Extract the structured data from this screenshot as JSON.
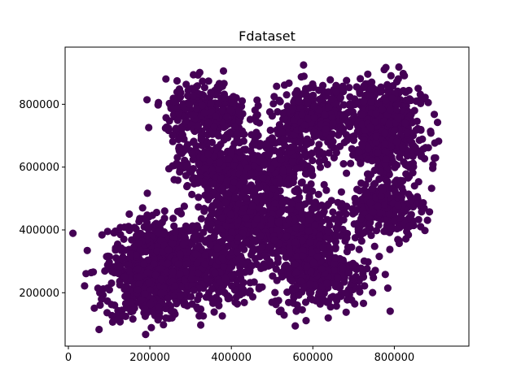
{
  "chart_data": {
    "type": "scatter",
    "title": "Fdataset",
    "xlabel": "",
    "ylabel": "",
    "xlim": [
      -8000,
      983000
    ],
    "ylim": [
      30000,
      982000
    ],
    "x_ticks": [
      0,
      200000,
      400000,
      600000,
      800000
    ],
    "y_ticks": [
      200000,
      400000,
      600000,
      800000
    ],
    "x_tick_labels": [
      "0",
      "200000",
      "400000",
      "600000",
      "800000"
    ],
    "y_tick_labels": [
      "200000",
      "400000",
      "600000",
      "800000"
    ],
    "grid": false,
    "legend": "none",
    "marker_color": "#440154",
    "clusters": [
      {
        "cx": 220000,
        "cy": 320000,
        "sx": 60000,
        "sy": 60000,
        "n": 420
      },
      {
        "cx": 200000,
        "cy": 210000,
        "sx": 55000,
        "sy": 50000,
        "n": 320
      },
      {
        "cx": 350000,
        "cy": 270000,
        "sx": 55000,
        "sy": 55000,
        "n": 300
      },
      {
        "cx": 430000,
        "cy": 410000,
        "sx": 55000,
        "sy": 50000,
        "n": 300
      },
      {
        "cx": 560000,
        "cy": 400000,
        "sx": 55000,
        "sy": 60000,
        "n": 380
      },
      {
        "cx": 620000,
        "cy": 260000,
        "sx": 60000,
        "sy": 55000,
        "n": 330
      },
      {
        "cx": 360000,
        "cy": 600000,
        "sx": 50000,
        "sy": 45000,
        "n": 280
      },
      {
        "cx": 520000,
        "cy": 620000,
        "sx": 45000,
        "sy": 45000,
        "n": 220
      },
      {
        "cx": 340000,
        "cy": 770000,
        "sx": 50000,
        "sy": 50000,
        "n": 300
      },
      {
        "cx": 600000,
        "cy": 760000,
        "sx": 55000,
        "sy": 50000,
        "n": 300
      },
      {
        "cx": 770000,
        "cy": 780000,
        "sx": 50000,
        "sy": 50000,
        "n": 300
      },
      {
        "cx": 780000,
        "cy": 660000,
        "sx": 50000,
        "sy": 45000,
        "n": 260
      },
      {
        "cx": 780000,
        "cy": 470000,
        "sx": 45000,
        "sy": 45000,
        "n": 260
      },
      {
        "cx": 430000,
        "cy": 520000,
        "sx": 70000,
        "sy": 40000,
        "n": 120
      }
    ]
  }
}
